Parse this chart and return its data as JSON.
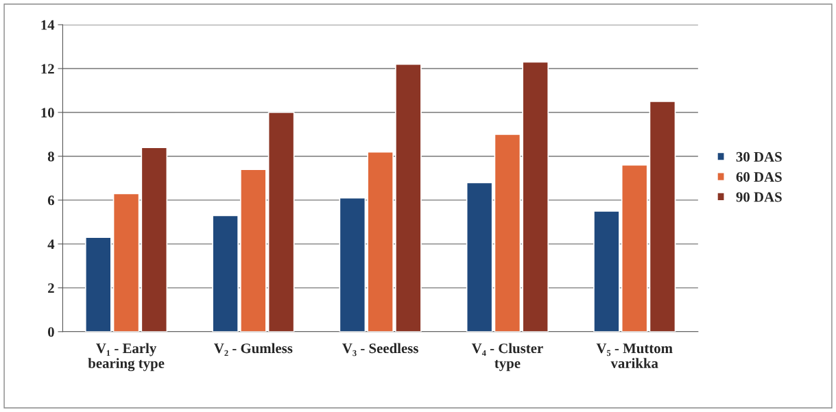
{
  "chart_data": {
    "type": "bar",
    "categories": [
      "V₁ - Early\nbearing type",
      "V₂ - Gumless",
      "V₃ - Seedless",
      "V₄ - Cluster\ntype",
      "V₅ - Muttom\nvarikka"
    ],
    "series": [
      {
        "name": "30 DAS",
        "color": "#1f497d",
        "values": [
          4.3,
          5.3,
          6.1,
          6.8,
          5.5
        ]
      },
      {
        "name": "60 DAS",
        "color": "#e0683a",
        "values": [
          6.3,
          7.4,
          8.2,
          9.0,
          7.6
        ]
      },
      {
        "name": "90 DAS",
        "color": "#8b3525",
        "values": [
          8.4,
          10.0,
          12.2,
          12.3,
          10.5
        ]
      }
    ],
    "ylim": [
      0,
      14
    ],
    "yticks": [
      0,
      2,
      4,
      6,
      8,
      10,
      12,
      14
    ],
    "grid": "y",
    "legend": "right"
  }
}
